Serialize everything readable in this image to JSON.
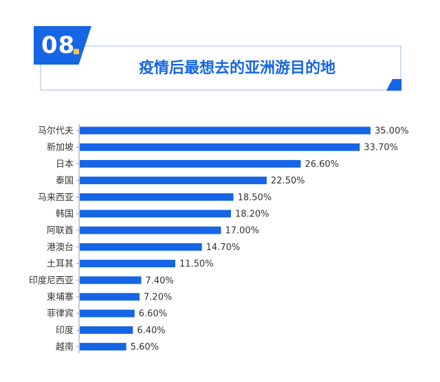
{
  "header": {
    "number": "08",
    "title": "疫情后最想去的亚洲游目的地"
  },
  "colors": {
    "accent": "#1565e6",
    "dot": "#f5c04a"
  },
  "chart_data": {
    "type": "bar",
    "orientation": "horizontal",
    "categories": [
      "马尔代夫",
      "新加坡",
      "日本",
      "泰国",
      "马来西亚",
      "韩国",
      "阿联酋",
      "港澳台",
      "土耳其",
      "印度尼西亚",
      "柬埔寨",
      "菲律宾",
      "印度",
      "越南"
    ],
    "values": [
      35.0,
      33.7,
      26.6,
      22.5,
      18.5,
      18.2,
      17.0,
      14.7,
      11.5,
      7.4,
      7.2,
      6.6,
      6.4,
      5.6
    ],
    "value_labels": [
      "35.00%",
      "33.70%",
      "26.60%",
      "22.50%",
      "18.50%",
      "18.20%",
      "17.00%",
      "14.70%",
      "11.50%",
      "7.40%",
      "7.20%",
      "6.60%",
      "6.40%",
      "5.60%"
    ],
    "title": "疫情后最想去的亚洲游目的地",
    "xlim": [
      0,
      35
    ],
    "grid": false,
    "bar_color": "#1565e6"
  }
}
